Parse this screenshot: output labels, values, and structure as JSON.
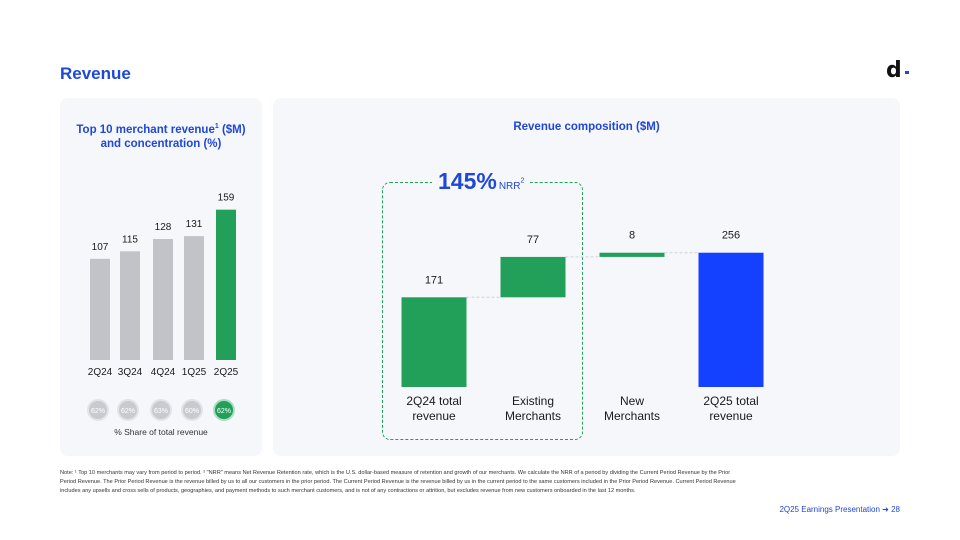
{
  "page": {
    "title": "Revenue",
    "logo_text": "d",
    "footer": "2Q25 Earnings Presentation ➜  28",
    "footnote": "Note: ¹ Top 10 merchants may vary from period to period.  ² \"NRR\" means Net Revenue Retention rate, which is the U.S. dollar-based measure of retention and growth of our merchants. We calculate the NRR of a period by dividing the Current Period Revenue by the Prior Period Revenue. The Prior Period Revenue is the revenue billed by us to all our customers in the prior period. The Current Period Revenue is the revenue billed by us in the current period to the same customers included in the Prior Period Revenue. Current Period Revenue includes any upsells and cross sells of products, geographies, and payment methods to such merchant customers, and is not of any contractions or attrition, but excludes revenue from new customers onboarded in the last 12 months."
  },
  "colors": {
    "accent_blue": "#1f47d8",
    "bar_gray": "#c2c3c8",
    "bar_green": "#22a05a",
    "bar_blue": "#1440ff",
    "share_gray": "#c9cacf"
  },
  "chart_data": [
    {
      "type": "bar",
      "title": "Top 10 merchant revenue",
      "title_sup": "1",
      "title_suffix": " ($M)",
      "title_line2": "and concentration (%)",
      "categories": [
        "2Q24",
        "3Q24",
        "4Q24",
        "1Q25",
        "2Q25"
      ],
      "values": [
        107,
        115,
        128,
        131,
        159
      ],
      "highlight_index": 4,
      "ylim": [
        0,
        165
      ],
      "share_values": [
        "62%",
        "62%",
        "63%",
        "60%",
        "62%"
      ],
      "share_label": "% Share of total revenue"
    },
    {
      "type": "bar",
      "subtype": "waterfall",
      "title": "Revenue composition ($M)",
      "categories": [
        [
          "2Q24 total",
          "revenue"
        ],
        [
          "Existing",
          "Merchants"
        ],
        [
          "New",
          "Merchants"
        ],
        [
          "2Q25 total",
          "revenue"
        ]
      ],
      "steps": [
        {
          "value": 171,
          "kind": "total"
        },
        {
          "value": 77,
          "kind": "increase"
        },
        {
          "value": 8,
          "kind": "increase"
        },
        {
          "value": 256,
          "kind": "total"
        }
      ],
      "value_labels": [
        "171",
        "77",
        "8",
        "256"
      ],
      "ylim": [
        0,
        265
      ],
      "nrr": {
        "value": "145%",
        "label": "NRR",
        "sup": "2"
      }
    }
  ]
}
